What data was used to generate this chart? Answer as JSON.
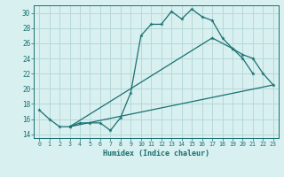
{
  "xlabel": "Humidex (Indice chaleur)",
  "bg_color": "#d8f0f0",
  "grid_color": "#b8d8d8",
  "line_color": "#1a7070",
  "xlim": [
    -0.5,
    23.5
  ],
  "ylim": [
    13.5,
    31.0
  ],
  "xticks": [
    0,
    1,
    2,
    3,
    4,
    5,
    6,
    7,
    8,
    9,
    10,
    11,
    12,
    13,
    14,
    15,
    16,
    17,
    18,
    19,
    20,
    21,
    22,
    23
  ],
  "yticks": [
    14,
    16,
    18,
    20,
    22,
    24,
    26,
    28,
    30
  ],
  "line1_x": [
    0,
    1,
    2,
    3,
    4,
    5,
    6,
    7,
    8,
    9,
    10,
    11,
    12,
    13,
    14,
    15,
    16,
    17,
    18,
    19,
    20,
    21
  ],
  "line1_y": [
    17.2,
    16.0,
    15.0,
    15.0,
    15.5,
    15.5,
    15.5,
    14.5,
    16.2,
    19.5,
    27.0,
    28.5,
    28.5,
    30.2,
    29.2,
    30.5,
    29.5,
    29.0,
    26.7,
    25.3,
    24.0,
    22.0
  ],
  "line2_x": [
    3,
    17,
    19,
    20,
    21,
    22,
    23
  ],
  "line2_y": [
    15.0,
    26.7,
    25.3,
    24.5,
    24.0,
    22.0,
    20.5
  ],
  "line3_x": [
    3,
    23
  ],
  "line3_y": [
    15.0,
    20.5
  ]
}
